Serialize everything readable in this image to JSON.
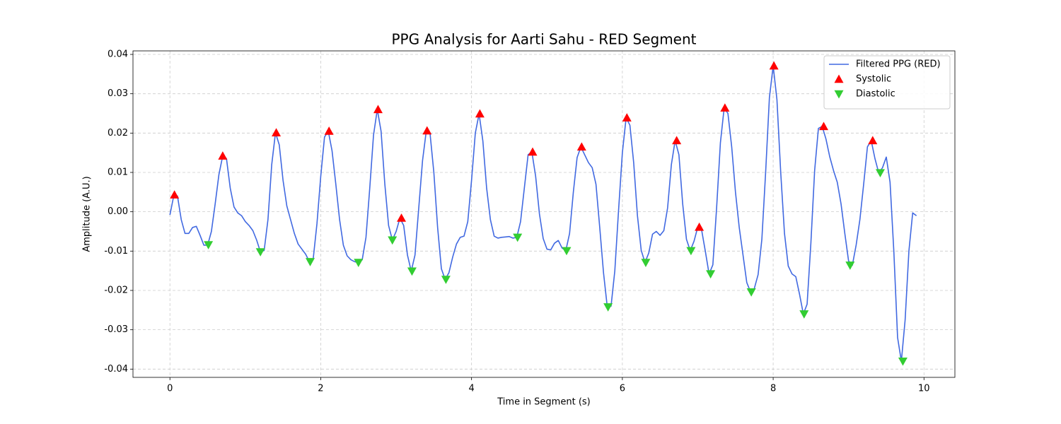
{
  "chart_data": {
    "type": "line",
    "title": "PPG Analysis for Aarti Sahu - RED Segment",
    "x_label": "Time in Segment (s)",
    "y_label": "Amplitude (A.U.)",
    "xlim": [
      -0.49,
      10.41
    ],
    "ylim": [
      -0.0421,
      0.0409
    ],
    "xticks": [
      0,
      2,
      4,
      6,
      8,
      10
    ],
    "yticks": [
      -0.04,
      -0.03,
      -0.02,
      -0.01,
      {
        "value": 0,
        "label": "0.00"
      },
      0.01,
      0.02,
      0.03,
      0.04
    ],
    "grid": true,
    "legend_position": "upper right",
    "series": [
      {
        "name": "Filtered PPG (RED)",
        "type": "line",
        "color": "#4169e1",
        "x": [
          0,
          0.05,
          0.1,
          0.15,
          0.2,
          0.25,
          0.3,
          0.35,
          0.4,
          0.45,
          0.5,
          0.55,
          0.6,
          0.65,
          0.7,
          0.75,
          0.8,
          0.85,
          0.9,
          0.95,
          1.0,
          1.05,
          1.1,
          1.15,
          1.2,
          1.25,
          1.3,
          1.35,
          1.4,
          1.45,
          1.5,
          1.55,
          1.6,
          1.65,
          1.7,
          1.75,
          1.8,
          1.85,
          1.9,
          1.95,
          2.0,
          2.05,
          2.1,
          2.15,
          2.2,
          2.25,
          2.3,
          2.35,
          2.4,
          2.45,
          2.5,
          2.55,
          2.6,
          2.65,
          2.7,
          2.75,
          2.8,
          2.85,
          2.9,
          2.95,
          3.0,
          3.05,
          3.1,
          3.15,
          3.2,
          3.25,
          3.3,
          3.35,
          3.4,
          3.45,
          3.5,
          3.55,
          3.6,
          3.65,
          3.7,
          3.75,
          3.8,
          3.85,
          3.9,
          3.95,
          4.0,
          4.05,
          4.1,
          4.15,
          4.2,
          4.25,
          4.3,
          4.35,
          4.4,
          4.45,
          4.5,
          4.55,
          4.6,
          4.65,
          4.7,
          4.75,
          4.8,
          4.85,
          4.9,
          4.95,
          5.0,
          5.05,
          5.1,
          5.15,
          5.2,
          5.25,
          5.3,
          5.35,
          5.4,
          5.45,
          5.5,
          5.55,
          5.6,
          5.65,
          5.7,
          5.75,
          5.8,
          5.85,
          5.9,
          5.95,
          6.0,
          6.05,
          6.1,
          6.15,
          6.2,
          6.25,
          6.3,
          6.35,
          6.4,
          6.45,
          6.5,
          6.55,
          6.6,
          6.65,
          6.7,
          6.75,
          6.8,
          6.85,
          6.9,
          6.95,
          7.0,
          7.05,
          7.1,
          7.15,
          7.2,
          7.25,
          7.3,
          7.35,
          7.4,
          7.45,
          7.5,
          7.55,
          7.6,
          7.65,
          7.7,
          7.75,
          7.8,
          7.85,
          7.9,
          7.95,
          8.0,
          8.05,
          8.1,
          8.15,
          8.2,
          8.25,
          8.3,
          8.35,
          8.4,
          8.45,
          8.5,
          8.55,
          8.6,
          8.65,
          8.7,
          8.75,
          8.8,
          8.85,
          8.9,
          8.95,
          9.0,
          9.05,
          9.1,
          9.15,
          9.2,
          9.25,
          9.3,
          9.35,
          9.4,
          9.45,
          9.5,
          9.55,
          9.6,
          9.65,
          9.7,
          9.75,
          9.8,
          9.85,
          9.9
        ],
        "values": [
          -0.0008,
          0.004,
          0.004,
          -0.002,
          -0.0055,
          -0.0055,
          -0.004,
          -0.0037,
          -0.006,
          -0.0085,
          -0.0085,
          -0.005,
          0.002,
          0.0095,
          0.0142,
          0.0135,
          0.006,
          0.0012,
          -0.0003,
          -0.001,
          -0.0025,
          -0.0035,
          -0.0048,
          -0.0072,
          -0.0102,
          -0.0098,
          -0.002,
          0.012,
          0.0201,
          0.017,
          0.008,
          0.0015,
          -0.002,
          -0.0055,
          -0.0082,
          -0.0095,
          -0.0108,
          -0.0127,
          -0.012,
          -0.003,
          0.009,
          0.019,
          0.0205,
          0.0155,
          0.007,
          -0.002,
          -0.0085,
          -0.0112,
          -0.0122,
          -0.0127,
          -0.0129,
          -0.0122,
          -0.0065,
          0.006,
          0.0195,
          0.026,
          0.0205,
          0.007,
          -0.0035,
          -0.0072,
          -0.005,
          -0.0016,
          -0.0035,
          -0.011,
          -0.0151,
          -0.011,
          0.001,
          0.013,
          0.0206,
          0.0198,
          0.01,
          -0.004,
          -0.0145,
          -0.0172,
          -0.0155,
          -0.0115,
          -0.0082,
          -0.0065,
          -0.0062,
          -0.0025,
          0.008,
          0.02,
          0.0249,
          0.018,
          0.006,
          -0.002,
          -0.0062,
          -0.0067,
          -0.0065,
          -0.0064,
          -0.0063,
          -0.0067,
          -0.0065,
          -0.0025,
          0.006,
          0.0145,
          0.0152,
          0.009,
          -0.0005,
          -0.0068,
          -0.0095,
          -0.0097,
          -0.008,
          -0.0073,
          -0.0092,
          -0.0099,
          -0.0055,
          0.005,
          0.0138,
          0.0165,
          0.0145,
          0.0125,
          0.0112,
          0.007,
          -0.004,
          -0.0155,
          -0.0242,
          -0.024,
          -0.015,
          0.0005,
          0.015,
          0.0239,
          0.022,
          0.0125,
          -0.001,
          -0.0098,
          -0.0129,
          -0.0105,
          -0.0057,
          -0.005,
          -0.006,
          -0.0048,
          0.001,
          0.012,
          0.0181,
          0.0145,
          0.002,
          -0.007,
          -0.0099,
          -0.0075,
          -0.0039,
          -0.0045,
          -0.01,
          -0.0158,
          -0.0135,
          0.001,
          0.0175,
          0.0264,
          0.025,
          0.0165,
          0.005,
          -0.004,
          -0.011,
          -0.018,
          -0.0204,
          -0.0195,
          -0.016,
          -0.007,
          0.01,
          0.029,
          0.0371,
          0.0285,
          0.01,
          -0.0055,
          -0.0138,
          -0.0158,
          -0.0165,
          -0.021,
          -0.026,
          -0.0235,
          -0.008,
          0.0105,
          0.0212,
          0.0217,
          0.0185,
          0.014,
          0.0105,
          0.0075,
          0.002,
          -0.0055,
          -0.0125,
          -0.0136,
          -0.0085,
          -0.002,
          0.007,
          0.0165,
          0.0181,
          0.0135,
          0.0099,
          0.0112,
          0.0139,
          0.0075,
          -0.01,
          -0.032,
          -0.038,
          -0.0275,
          -0.01,
          -0.0003,
          -0.001
        ]
      },
      {
        "name": "Systolic",
        "type": "scatter",
        "marker": "triangle-up",
        "color": "#ff0000",
        "x": [
          0.06,
          0.7,
          1.41,
          2.11,
          2.76,
          3.07,
          3.41,
          4.11,
          4.81,
          5.46,
          6.06,
          6.72,
          7.02,
          7.36,
          8.01,
          8.67,
          9.32
        ],
        "values": [
          0.0043,
          0.0142,
          0.0201,
          0.0205,
          0.026,
          -0.0016,
          0.0206,
          0.0249,
          0.0152,
          0.0165,
          0.0239,
          0.0181,
          -0.0039,
          0.0264,
          0.0371,
          0.0217,
          0.0181
        ]
      },
      {
        "name": "Diastolic",
        "type": "scatter",
        "marker": "triangle-down",
        "color": "#32cd32",
        "x": [
          0.51,
          1.2,
          1.86,
          2.5,
          2.95,
          3.21,
          3.66,
          4.61,
          5.26,
          5.81,
          6.31,
          6.91,
          7.17,
          7.71,
          8.41,
          9.02,
          9.42,
          9.72
        ],
        "values": [
          -0.0084,
          -0.0102,
          -0.0127,
          -0.0129,
          -0.0072,
          -0.0151,
          -0.0172,
          -0.0065,
          -0.0099,
          -0.0242,
          -0.0129,
          -0.0099,
          -0.0158,
          -0.0204,
          -0.026,
          -0.0136,
          0.0099,
          -0.038
        ]
      }
    ]
  }
}
